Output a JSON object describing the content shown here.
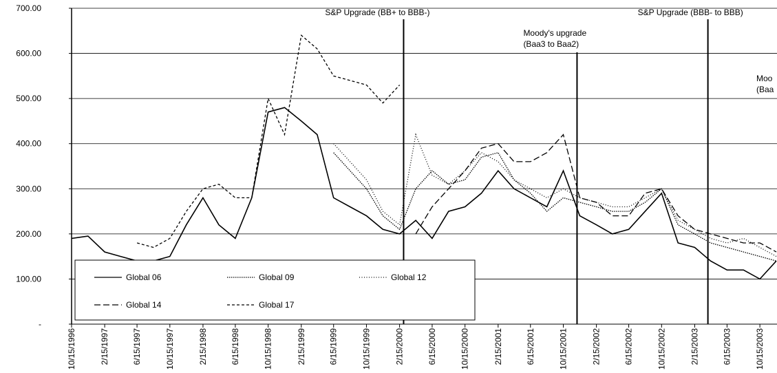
{
  "chart_data": {
    "type": "line",
    "x": [
      "10/15/1996",
      "12/15/1996",
      "2/15/1997",
      "4/15/1997",
      "6/15/1997",
      "8/15/1997",
      "10/15/1997",
      "12/15/1997",
      "2/15/1998",
      "4/15/1998",
      "6/15/1998",
      "8/15/1998",
      "10/15/1998",
      "12/15/1998",
      "2/15/1999",
      "4/15/1999",
      "6/15/1999",
      "8/15/1999",
      "10/15/1999",
      "12/15/1999",
      "2/15/2000",
      "4/15/2000",
      "6/15/2000",
      "8/15/2000",
      "10/15/2000",
      "12/15/2000",
      "2/15/2001",
      "4/15/2001",
      "6/15/2001",
      "8/15/2001",
      "10/15/2001",
      "12/15/2001",
      "2/15/2002",
      "4/15/2002",
      "6/15/2002",
      "8/15/2002",
      "10/15/2002",
      "12/15/2002",
      "2/15/2003",
      "4/15/2003",
      "6/15/2003",
      "8/15/2003",
      "10/15/2003",
      "12/15/2003"
    ],
    "series": [
      {
        "name": "Global 06",
        "color": "#000000",
        "dash": "solid",
        "values": [
          190,
          195,
          160,
          150,
          140,
          140,
          150,
          220,
          280,
          220,
          190,
          280,
          470,
          480,
          450,
          420,
          280,
          260,
          240,
          210,
          200,
          230,
          190,
          250,
          260,
          290,
          340,
          300,
          280,
          260,
          340,
          240,
          220,
          200,
          210,
          250,
          290,
          180,
          170,
          140,
          120,
          120,
          100,
          140
        ]
      },
      {
        "name": "Global 09",
        "color": "#000000",
        "dash": "dotted",
        "values": [
          null,
          null,
          null,
          null,
          null,
          null,
          null,
          null,
          null,
          null,
          null,
          null,
          null,
          null,
          null,
          null,
          380,
          340,
          300,
          240,
          210,
          300,
          340,
          310,
          320,
          370,
          380,
          320,
          290,
          250,
          280,
          270,
          260,
          250,
          250,
          270,
          300,
          220,
          200,
          180,
          170,
          160,
          150,
          140
        ]
      },
      {
        "name": "Global 12",
        "color": "#000000",
        "dash": "fine-dotted",
        "values": [
          null,
          null,
          null,
          null,
          null,
          null,
          null,
          null,
          null,
          null,
          null,
          null,
          null,
          null,
          null,
          null,
          400,
          360,
          320,
          250,
          220,
          420,
          330,
          310,
          340,
          380,
          360,
          320,
          300,
          280,
          300,
          280,
          270,
          260,
          260,
          280,
          300,
          230,
          210,
          190,
          180,
          190,
          170,
          150
        ]
      },
      {
        "name": "Global 14",
        "color": "#000000",
        "dash": "long-dash",
        "values": [
          null,
          null,
          null,
          null,
          null,
          null,
          null,
          null,
          null,
          null,
          null,
          null,
          null,
          null,
          null,
          null,
          null,
          null,
          null,
          null,
          null,
          200,
          260,
          300,
          340,
          390,
          400,
          360,
          360,
          380,
          420,
          280,
          270,
          240,
          240,
          290,
          300,
          240,
          210,
          200,
          190,
          180,
          180,
          160
        ]
      },
      {
        "name": "Global 17",
        "color": "#000000",
        "dash": "short-dash",
        "values": [
          null,
          null,
          null,
          null,
          180,
          170,
          190,
          250,
          300,
          310,
          280,
          280,
          500,
          420,
          640,
          610,
          550,
          540,
          530,
          490,
          530,
          null,
          null,
          null,
          null,
          null,
          null,
          null,
          null,
          null,
          null,
          null,
          null,
          null,
          null,
          null,
          null,
          null,
          null,
          null,
          null,
          null,
          null,
          null
        ]
      }
    ],
    "xlim": [
      "10/15/1996",
      "12/15/2003"
    ],
    "xticks": [
      "10/15/1996",
      "2/15/1997",
      "6/15/1997",
      "10/15/1997",
      "2/15/1998",
      "6/15/1998",
      "10/15/1998",
      "2/15/1999",
      "6/15/1999",
      "10/15/1999",
      "2/15/2000",
      "6/15/2000",
      "10/15/2000",
      "2/15/2001",
      "6/15/2001",
      "10/15/2001",
      "2/15/2002",
      "6/15/2002",
      "10/15/2002",
      "2/15/2003",
      "6/15/2003",
      "10/15/2003"
    ],
    "ylim": [
      0,
      700
    ],
    "yticks": [
      {
        "value": 0,
        "label": "-"
      },
      {
        "value": 100,
        "label": "100.00"
      },
      {
        "value": 200,
        "label": "200.00"
      },
      {
        "value": 300,
        "label": "300.00"
      },
      {
        "value": 400,
        "label": "400.00"
      },
      {
        "value": 500,
        "label": "500.00"
      },
      {
        "value": 600,
        "label": "600.00"
      },
      {
        "value": 700,
        "label": "700.00"
      }
    ],
    "grid": true,
    "legend": "bottom-left",
    "annotations": [
      {
        "x": "3/1/2000",
        "text": [
          "S&P Upgrade (BB+ to BBB-)"
        ]
      },
      {
        "x": "12/5/2001",
        "text": [
          "Moody's upgrade",
          "(Baa3 to Baa2)"
        ]
      },
      {
        "x": "4/5/2003",
        "text": [
          "S&P Upgrade (BBB- to BBB)"
        ]
      },
      {
        "x": "12/15/2003",
        "text": [
          "Moo",
          "(Baa"
        ]
      }
    ]
  }
}
